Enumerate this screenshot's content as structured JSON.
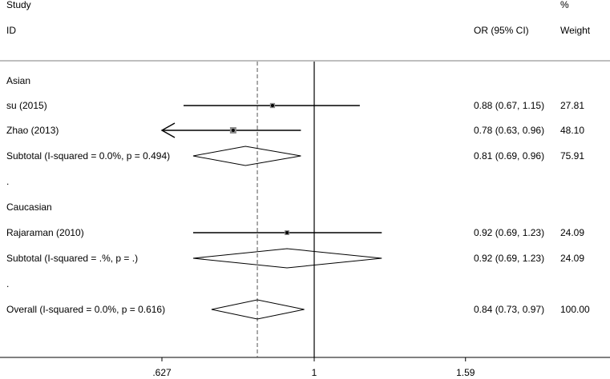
{
  "chart_data": {
    "type": "forest",
    "header": {
      "study_line1": "Study",
      "study_line2": "ID",
      "ci_label": "OR (95% CI)",
      "weight_line1": "%",
      "weight_line2": "Weight"
    },
    "null_line": 1,
    "pooled_line": 0.84,
    "x_ticks": [
      {
        "value": 0.627,
        "label": ".627"
      },
      {
        "value": 1,
        "label": "1"
      },
      {
        "value": 1.59,
        "label": "1.59"
      }
    ],
    "xlim": [
      0.5,
      2.0
    ],
    "log_scale": true,
    "rows": [
      {
        "kind": "group",
        "label": "Asian"
      },
      {
        "kind": "study",
        "label": "su (2015)",
        "or": 0.88,
        "lo": 0.67,
        "hi": 1.15,
        "ci_text": "0.88 (0.67, 1.15)",
        "weight": "27.81",
        "arrow_left": false
      },
      {
        "kind": "study",
        "label": "Zhao (2013)",
        "or": 0.78,
        "lo": 0.63,
        "hi": 0.96,
        "ci_text": "0.78 (0.63, 0.96)",
        "weight": "48.10",
        "arrow_left": true
      },
      {
        "kind": "subtotal",
        "label": "Subtotal  (I-squared = 0.0%, p = 0.494)",
        "or": 0.81,
        "lo": 0.69,
        "hi": 0.96,
        "ci_text": "0.81 (0.69, 0.96)",
        "weight": "75.91"
      },
      {
        "kind": "spacer",
        "label": "."
      },
      {
        "kind": "group",
        "label": "Caucasian"
      },
      {
        "kind": "study",
        "label": "Rajaraman (2010)",
        "or": 0.92,
        "lo": 0.69,
        "hi": 1.23,
        "ci_text": "0.92 (0.69, 1.23)",
        "weight": "24.09",
        "arrow_left": false
      },
      {
        "kind": "subtotal",
        "label": "Subtotal  (I-squared = .%, p = .)",
        "or": 0.92,
        "lo": 0.69,
        "hi": 1.23,
        "ci_text": "0.92 (0.69, 1.23)",
        "weight": "24.09"
      },
      {
        "kind": "spacer",
        "label": "."
      },
      {
        "kind": "overall",
        "label": "Overall  (I-squared = 0.0%, p = 0.616)",
        "or": 0.84,
        "lo": 0.73,
        "hi": 0.97,
        "ci_text": "0.84 (0.73, 0.97)",
        "weight": "100.00"
      }
    ]
  }
}
